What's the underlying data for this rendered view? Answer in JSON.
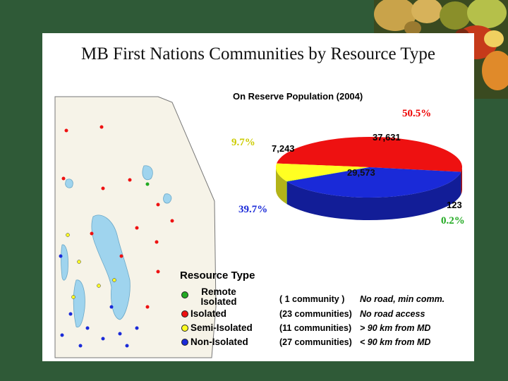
{
  "slide": {
    "title": "MB First Nations Communities by Resource Type"
  },
  "chart_data": {
    "type": "pie",
    "title": "On Reserve Population (2004)",
    "slices": [
      {
        "label": "Isolated",
        "value": 37631,
        "value_label": "37,631",
        "percent_label": "50.5%",
        "color": "#ee1111"
      },
      {
        "label": "Non-Isolated",
        "value": 29573,
        "value_label": "29,573",
        "percent_label": "39.7%",
        "color": "#1a2ad8"
      },
      {
        "label": "Remote Isolated",
        "value": 123,
        "value_label": "123",
        "percent_label": "0.2%",
        "color": "#22aa22"
      },
      {
        "label": "Semi-Isolated",
        "value": 7243,
        "value_label": "7,243",
        "percent_label": "9.7%",
        "color": "#ffff22"
      }
    ]
  },
  "legend": {
    "title": "Resource Type",
    "items": [
      {
        "label": "Remote Isolated",
        "count": "(  1 community  )",
        "desc": "No road, min comm.",
        "color": "#22aa22"
      },
      {
        "label": "Isolated",
        "count": "(23 communities)",
        "desc": "No road access",
        "color": "#ee1111"
      },
      {
        "label": "Semi-Isolated",
        "count": "(11 communities)",
        "desc": "> 90 km from MD",
        "color": "#ffff22"
      },
      {
        "label": "Non-Isolated",
        "count": "(27 communities)",
        "desc": "< 90 km from MD",
        "color": "#1a2ad8"
      }
    ]
  }
}
